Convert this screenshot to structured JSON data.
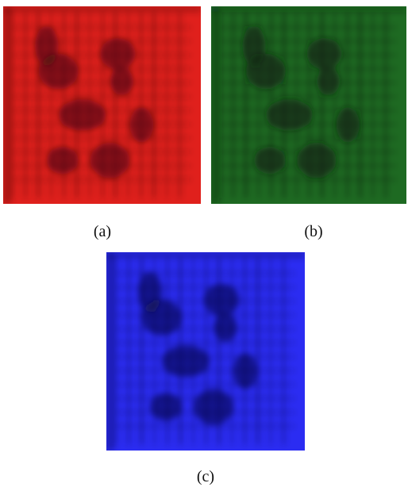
{
  "figure": {
    "panels": [
      {
        "id": "a",
        "label": "(a)",
        "color": "#e0201c",
        "dark": "#3a0a0c",
        "icon": "red-channel-image"
      },
      {
        "id": "b",
        "label": "(b)",
        "color": "#1e6a22",
        "dark": "#0c1a0e",
        "icon": "green-channel-image"
      },
      {
        "id": "c",
        "label": "(c)",
        "color": "#2b2cf2",
        "dark": "#0b0b3a",
        "icon": "blue-channel-image"
      }
    ]
  }
}
